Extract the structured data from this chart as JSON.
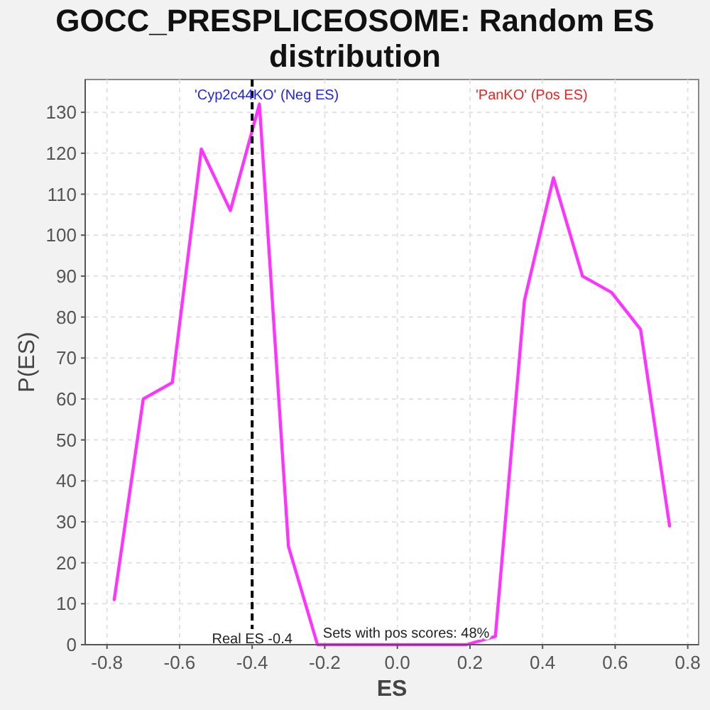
{
  "chart_data": {
    "type": "line",
    "title": "GOCC_PRESPLICEOSOME: Random ES distribution",
    "xlabel": "ES",
    "ylabel": "P(ES)",
    "x": [
      -0.78,
      -0.7,
      -0.62,
      -0.54,
      -0.46,
      -0.38,
      -0.3,
      -0.22,
      -0.14,
      -0.06,
      0.03,
      0.11,
      0.19,
      0.27,
      0.35,
      0.43,
      0.51,
      0.59,
      0.67,
      0.75
    ],
    "series": [
      {
        "color": "#ff33ff",
        "values": [
          11,
          60,
          64,
          121,
          106,
          132,
          24,
          0,
          0,
          0,
          0,
          0,
          0,
          2,
          84,
          114,
          90,
          86,
          77,
          29
        ]
      }
    ],
    "xlim": [
      -0.86,
      0.83
    ],
    "ylim": [
      0,
      138
    ],
    "xticks": [
      -0.8,
      -0.6,
      -0.4,
      -0.2,
      {
        "value": 0,
        "label": "0.0"
      },
      0.2,
      0.4,
      0.6,
      0.8
    ],
    "yticks": [
      0,
      10,
      20,
      30,
      40,
      50,
      60,
      70,
      80,
      90,
      100,
      110,
      120,
      130
    ],
    "grid": true,
    "ref_lines": [
      {
        "axis": "x",
        "value": -0.4,
        "label": "Real ES -0.4",
        "color": "#000000",
        "line_style": "dashed"
      }
    ],
    "annotations": [
      "'Cyp2c44KO' (Neg ES)",
      "'PanKO' (Pos ES)",
      "Sets with pos scores: 48%"
    ]
  }
}
